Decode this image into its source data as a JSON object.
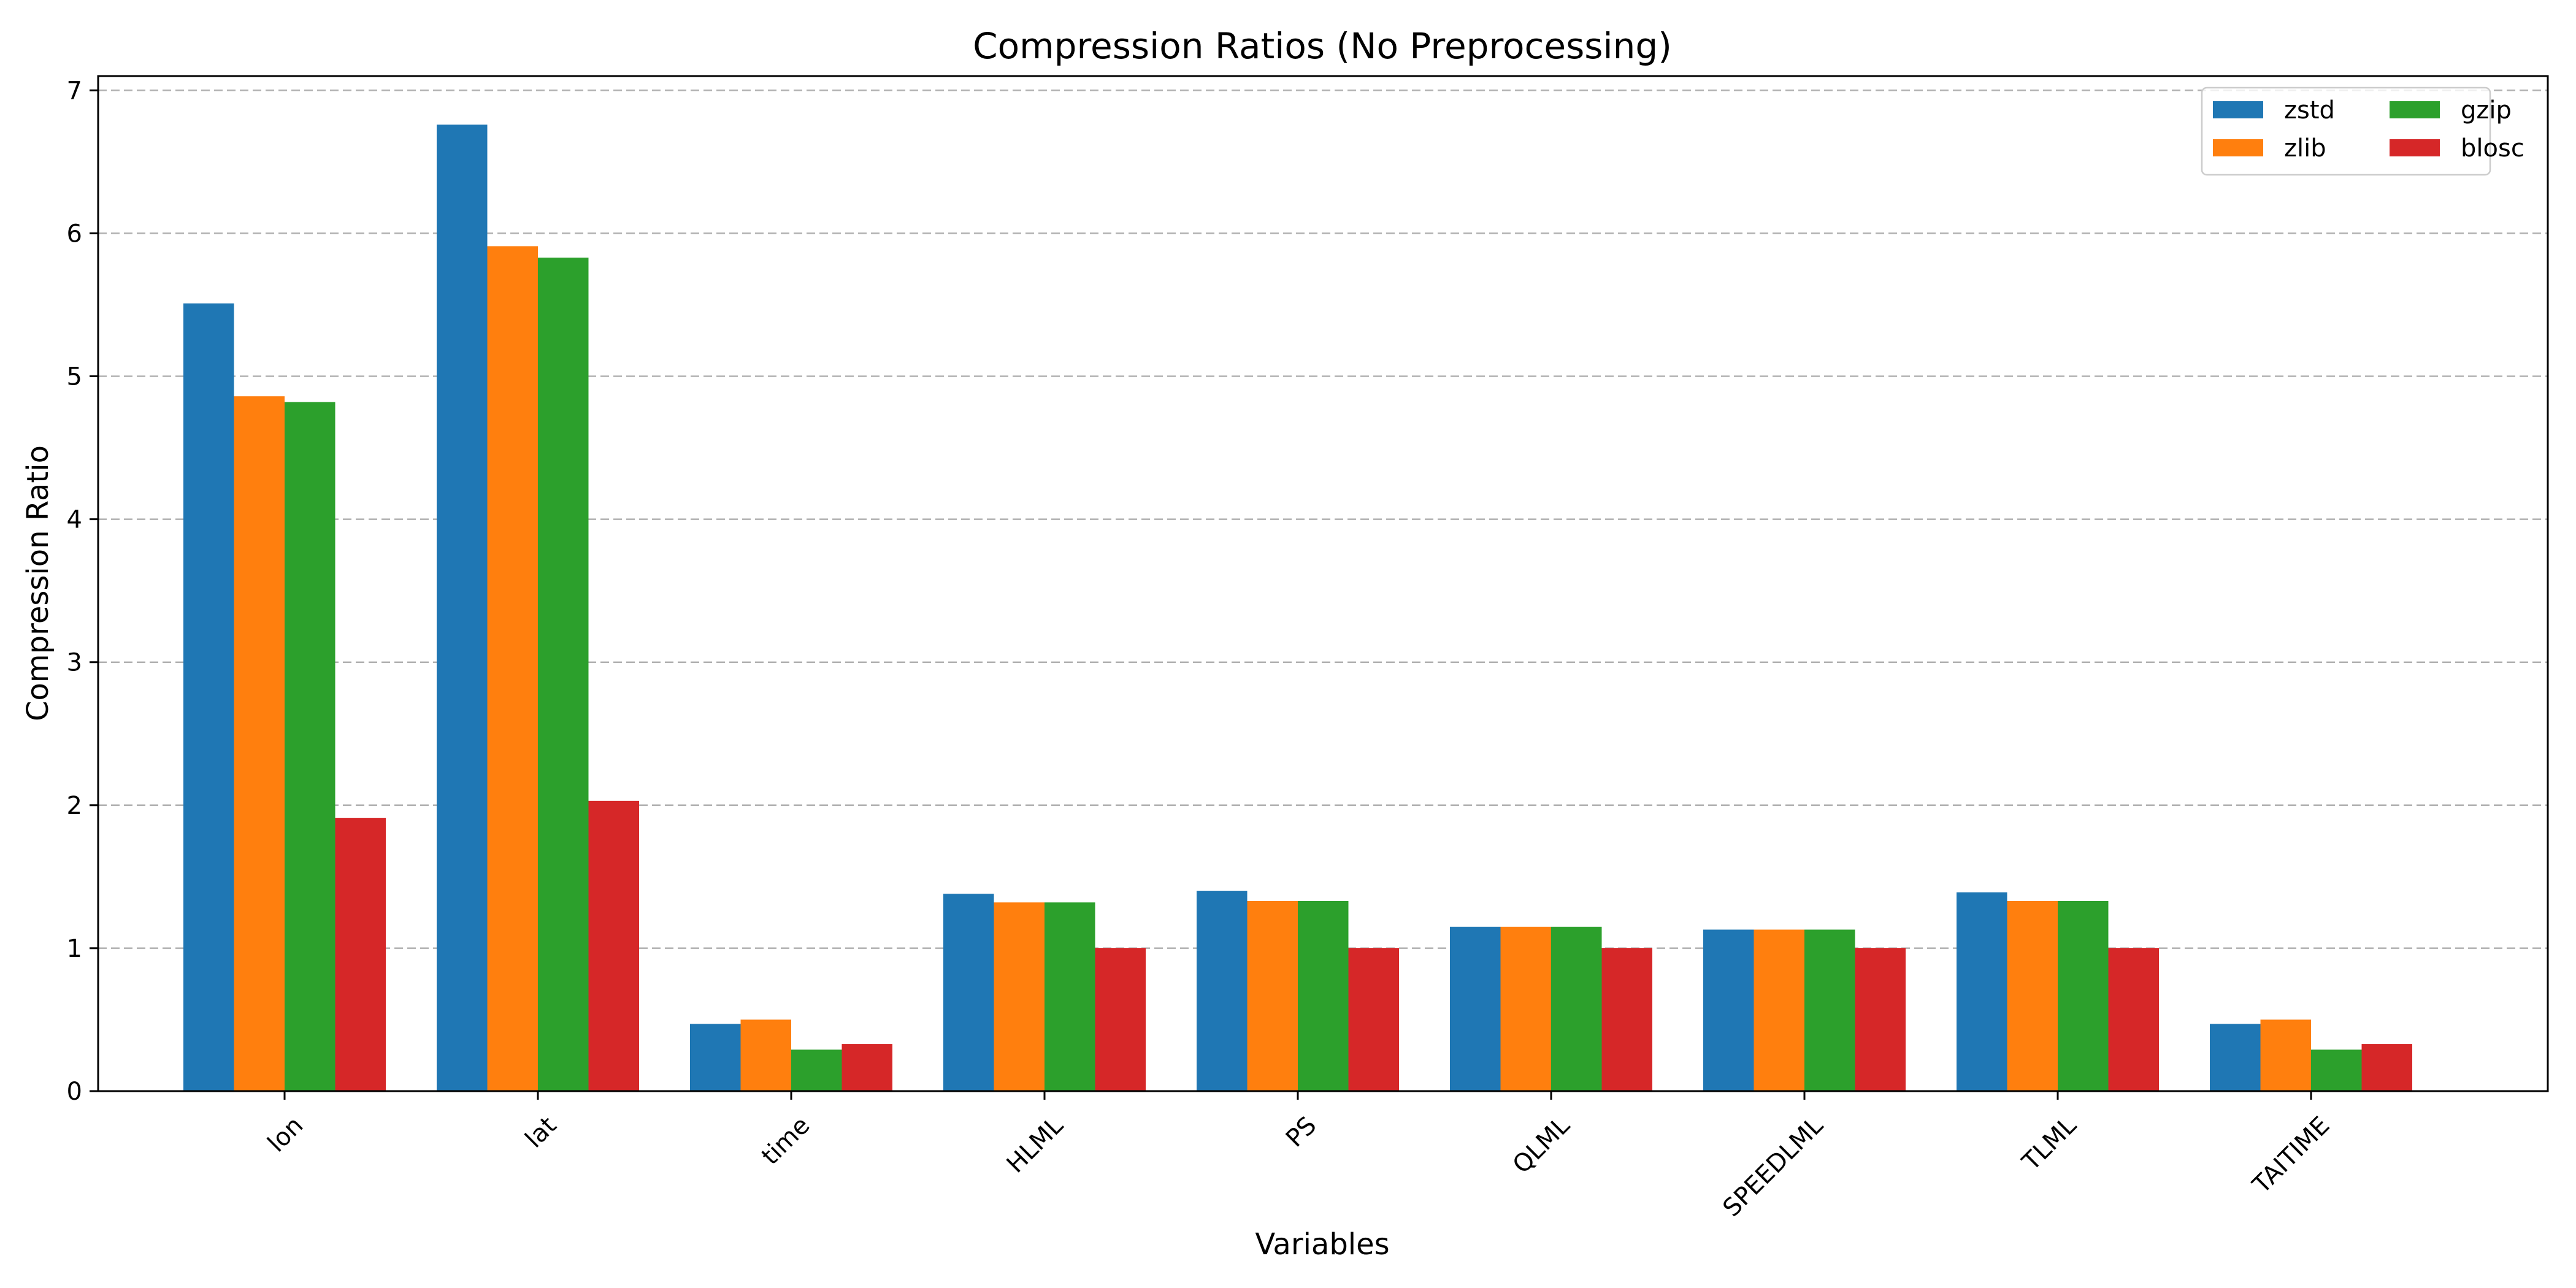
{
  "chart_data": {
    "type": "bar",
    "title": "Compression Ratios (No Preprocessing)",
    "xlabel": "Variables",
    "ylabel": "Compression Ratio",
    "categories": [
      "lon",
      "lat",
      "time",
      "HLML",
      "PS",
      "QLML",
      "SPEEDLML",
      "TLML",
      "TAITIME"
    ],
    "ylim": [
      0,
      7.1
    ],
    "yticks": [
      0,
      1,
      2,
      3,
      4,
      5,
      6,
      7
    ],
    "grid": {
      "y": true,
      "x": false,
      "style": "dashed"
    },
    "legend": {
      "position": "top-right",
      "columns": 2
    },
    "series": [
      {
        "name": "zstd",
        "color": "#1f77b4",
        "values": [
          5.51,
          6.76,
          0.47,
          1.38,
          1.4,
          1.15,
          1.13,
          1.39,
          0.47
        ]
      },
      {
        "name": "zlib",
        "color": "#ff7f0e",
        "values": [
          4.86,
          5.91,
          0.5,
          1.32,
          1.33,
          1.15,
          1.13,
          1.33,
          0.5
        ]
      },
      {
        "name": "gzip",
        "color": "#2ca02c",
        "values": [
          4.82,
          5.83,
          0.29,
          1.32,
          1.33,
          1.15,
          1.13,
          1.33,
          0.29
        ]
      },
      {
        "name": "blosc",
        "color": "#d62728",
        "values": [
          1.91,
          2.03,
          0.33,
          1.0,
          1.0,
          1.0,
          1.0,
          1.0,
          0.33
        ]
      }
    ]
  }
}
